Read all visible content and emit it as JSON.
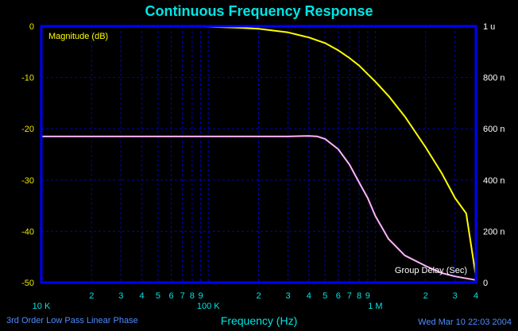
{
  "colors": {
    "background": "#000000",
    "frame": "#0000ff",
    "grid": "#0000c8",
    "title": "#00e5e5",
    "axis_text": "#00e5e5",
    "left_ticks": "#e8e800",
    "right_ticks": "#ffffff",
    "magnitude": "#ffff00",
    "group_delay": "#ffb4ff",
    "footer": "#4e8cff"
  },
  "chart_data": {
    "type": "line",
    "title": "Continuous Frequency Response",
    "xlabel": "Frequency (Hz)",
    "x_scale": "log",
    "xlim": [
      10000,
      4000000
    ],
    "x_major_ticks": [
      {
        "value": 10000,
        "label": "10 K"
      },
      {
        "value": 100000,
        "label": "100 K"
      },
      {
        "value": 1000000,
        "label": "1 M"
      }
    ],
    "x_minor_ticks": [
      {
        "value": 20000,
        "label": "2"
      },
      {
        "value": 30000,
        "label": "3"
      },
      {
        "value": 40000,
        "label": "4"
      },
      {
        "value": 50000,
        "label": "5"
      },
      {
        "value": 60000,
        "label": "6"
      },
      {
        "value": 70000,
        "label": "7"
      },
      {
        "value": 80000,
        "label": "8"
      },
      {
        "value": 90000,
        "label": "9"
      },
      {
        "value": 200000,
        "label": "2"
      },
      {
        "value": 300000,
        "label": "3"
      },
      {
        "value": 400000,
        "label": "4"
      },
      {
        "value": 500000,
        "label": "5"
      },
      {
        "value": 600000,
        "label": "6"
      },
      {
        "value": 700000,
        "label": "7"
      },
      {
        "value": 800000,
        "label": "8"
      },
      {
        "value": 900000,
        "label": "9"
      },
      {
        "value": 2000000,
        "label": "2"
      },
      {
        "value": 3000000,
        "label": "3"
      },
      {
        "value": 4000000,
        "label": "4"
      }
    ],
    "y_left": {
      "ylim": [
        -50,
        0
      ],
      "ticks": [
        {
          "value": 0,
          "label": "0"
        },
        {
          "value": -10,
          "label": "-10"
        },
        {
          "value": -20,
          "label": "-20"
        },
        {
          "value": -30,
          "label": "-30"
        },
        {
          "value": -40,
          "label": "-40"
        },
        {
          "value": -50,
          "label": "-50"
        }
      ]
    },
    "y_right": {
      "ylim": [
        0,
        1e-06
      ],
      "ticks": [
        {
          "value": 1e-06,
          "label": "1 u"
        },
        {
          "value": 8e-07,
          "label": "800 n"
        },
        {
          "value": 6e-07,
          "label": "600 n"
        },
        {
          "value": 4e-07,
          "label": "400 n"
        },
        {
          "value": 2e-07,
          "label": "200 n"
        },
        {
          "value": 0,
          "label": "0"
        }
      ]
    },
    "grid": true,
    "series": [
      {
        "name": "Magnitude (dB)",
        "axis": "left",
        "x": [
          10000,
          50000,
          100000,
          150000,
          200000,
          300000,
          400000,
          500000,
          600000,
          700000,
          800000,
          1000000,
          1200000,
          1500000,
          2000000,
          2500000,
          3000000,
          3500000,
          4000000
        ],
        "y": [
          0,
          0,
          -0.1,
          -0.3,
          -0.5,
          -1.2,
          -2.2,
          -3.3,
          -4.7,
          -6.2,
          -7.7,
          -10.8,
          -13.6,
          -17.6,
          -23.6,
          -28.7,
          -33.5,
          -36.5,
          -48.8
        ]
      },
      {
        "name": "Group Delay (Sec)",
        "axis": "right",
        "x": [
          10000,
          50000,
          100000,
          200000,
          300000,
          400000,
          450000,
          500000,
          600000,
          700000,
          800000,
          900000,
          1000000,
          1200000,
          1500000,
          2000000,
          2500000,
          3000000,
          4000000
        ],
        "y": [
          5.7e-07,
          5.7e-07,
          5.7e-07,
          5.7e-07,
          5.7e-07,
          5.72e-07,
          5.7e-07,
          5.6e-07,
          5.2e-07,
          4.6e-07,
          3.9e-07,
          3.3e-07,
          2.6e-07,
          1.7e-07,
          1.06e-07,
          6.5e-08,
          3.7e-08,
          2.4e-08,
          1e-08
        ]
      }
    ],
    "series_labels": {
      "magnitude": "Magnitude (dB)",
      "group_delay": "Group Delay (Sec)"
    }
  },
  "footer": {
    "left": "3rd Order Low Pass Linear Phase",
    "right": "Wed Mar 10 22:03 2004"
  }
}
